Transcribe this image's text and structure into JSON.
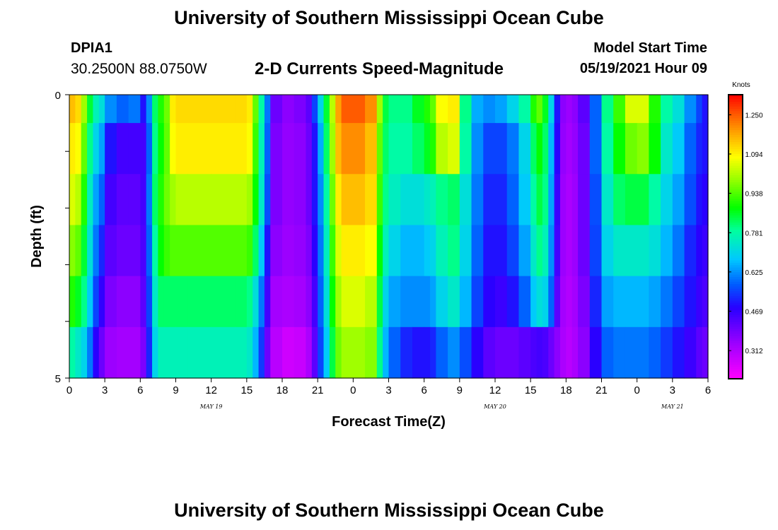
{
  "header": {
    "title": "University of Southern Mississippi Ocean Cube",
    "station_id": "DPIA1",
    "station_coords": "30.2500N  88.0750W",
    "subtitle": "2-D Currents Speed-Magnitude",
    "model_label": "Model Start Time",
    "model_value": "05/19/2021 Hour 09"
  },
  "footer": {
    "title": "University of Southern Mississippi Ocean Cube"
  },
  "chart_data": {
    "type": "heatmap",
    "xlabel": "Forecast Time(Z)",
    "ylabel": "Depth (ft)",
    "x_tick_labels": [
      "0",
      "3",
      "6",
      "9",
      "12",
      "15",
      "18",
      "21",
      "0",
      "3",
      "6",
      "9",
      "12",
      "15",
      "18",
      "21",
      "0",
      "3",
      "6"
    ],
    "date_labels": [
      {
        "text": "MAY 19",
        "hour": 12
      },
      {
        "text": "MAY 20",
        "hour": 36
      },
      {
        "text": "MAY 21",
        "hour": 51
      }
    ],
    "x_hours": [
      0,
      54
    ],
    "y_tick_labels": [
      "0",
      "5"
    ],
    "ylim": [
      0,
      5
    ],
    "depth_rows": 5,
    "colorbar": {
      "unit": "Knots",
      "min": 0.2,
      "max": 1.33,
      "tick_values": [
        1.25,
        1.094,
        0.938,
        0.781,
        0.625,
        0.469,
        0.312
      ],
      "tick_labels": [
        "1.250",
        "1.094",
        "0.938",
        "0.781",
        "0.625",
        "0.469",
        "0.312"
      ]
    },
    "speed_profile_hours": [
      0,
      0.5,
      1,
      1.5,
      2,
      2.5,
      3,
      4,
      5,
      6,
      6.5,
      7,
      7.5,
      8,
      8.5,
      9,
      10,
      12,
      14,
      15,
      15.5,
      16,
      16.5,
      17,
      18,
      19,
      20,
      20.5,
      21,
      21.5,
      22,
      22.5,
      23,
      24,
      25,
      26,
      26.5,
      27,
      28,
      29,
      30,
      30.5,
      31,
      32,
      33,
      34,
      35,
      36,
      37,
      38,
      39,
      39.5,
      40,
      40.5,
      41,
      41.5,
      42,
      42.5,
      43,
      44,
      45,
      46,
      47,
      48,
      49,
      50,
      51,
      52,
      53,
      53.5,
      54
    ],
    "speed_rows": [
      [
        1.15,
        1.12,
        1.0,
        0.85,
        0.76,
        0.72,
        0.62,
        0.58,
        0.6,
        0.5,
        0.62,
        0.82,
        0.9,
        0.96,
        1.1,
        1.12,
        1.12,
        1.12,
        1.12,
        1.1,
        0.95,
        0.78,
        0.6,
        0.4,
        0.36,
        0.38,
        0.42,
        0.55,
        0.7,
        0.85,
        1.02,
        1.18,
        1.25,
        1.25,
        1.2,
        1.0,
        0.84,
        0.8,
        0.8,
        0.86,
        0.9,
        0.95,
        1.08,
        1.1,
        0.8,
        0.65,
        0.62,
        0.64,
        0.7,
        0.78,
        0.9,
        0.95,
        0.86,
        0.7,
        0.5,
        0.36,
        0.34,
        0.36,
        0.42,
        0.58,
        0.8,
        0.92,
        1.05,
        1.05,
        0.9,
        0.78,
        0.72,
        0.62,
        0.55,
        0.5
      ],
      [
        1.1,
        1.08,
        0.95,
        0.8,
        0.7,
        0.64,
        0.5,
        0.45,
        0.45,
        0.45,
        0.58,
        0.8,
        0.88,
        0.95,
        1.08,
        1.1,
        1.1,
        1.1,
        1.1,
        1.08,
        0.92,
        0.76,
        0.58,
        0.38,
        0.35,
        0.36,
        0.4,
        0.5,
        0.65,
        0.82,
        1.0,
        1.15,
        1.2,
        1.2,
        1.15,
        0.95,
        0.82,
        0.78,
        0.78,
        0.82,
        0.86,
        0.9,
        1.02,
        1.05,
        0.78,
        0.62,
        0.55,
        0.55,
        0.6,
        0.7,
        0.82,
        0.88,
        0.82,
        0.66,
        0.48,
        0.35,
        0.33,
        0.35,
        0.4,
        0.58,
        0.78,
        0.88,
        0.96,
        0.98,
        0.88,
        0.74,
        0.68,
        0.58,
        0.52,
        0.5
      ],
      [
        1.05,
        1.02,
        0.9,
        0.75,
        0.64,
        0.58,
        0.45,
        0.42,
        0.42,
        0.45,
        0.6,
        0.82,
        0.9,
        0.96,
        1.0,
        1.02,
        1.02,
        1.02,
        1.02,
        1.0,
        0.88,
        0.74,
        0.56,
        0.38,
        0.35,
        0.36,
        0.4,
        0.5,
        0.62,
        0.78,
        0.96,
        1.1,
        1.15,
        1.15,
        1.12,
        0.92,
        0.8,
        0.75,
        0.72,
        0.72,
        0.74,
        0.76,
        0.8,
        0.82,
        0.72,
        0.6,
        0.52,
        0.52,
        0.58,
        0.68,
        0.78,
        0.84,
        0.8,
        0.64,
        0.46,
        0.34,
        0.32,
        0.34,
        0.4,
        0.56,
        0.74,
        0.82,
        0.84,
        0.84,
        0.78,
        0.7,
        0.64,
        0.56,
        0.5,
        0.48
      ],
      [
        0.98,
        0.95,
        0.85,
        0.72,
        0.6,
        0.52,
        0.42,
        0.4,
        0.4,
        0.44,
        0.58,
        0.78,
        0.88,
        0.92,
        0.94,
        0.94,
        0.94,
        0.94,
        0.94,
        0.92,
        0.82,
        0.68,
        0.5,
        0.36,
        0.34,
        0.35,
        0.38,
        0.48,
        0.6,
        0.75,
        0.92,
        1.05,
        1.1,
        1.1,
        1.08,
        0.88,
        0.76,
        0.7,
        0.66,
        0.66,
        0.68,
        0.7,
        0.76,
        0.8,
        0.7,
        0.58,
        0.5,
        0.5,
        0.55,
        0.64,
        0.74,
        0.8,
        0.76,
        0.62,
        0.45,
        0.34,
        0.32,
        0.34,
        0.4,
        0.55,
        0.7,
        0.74,
        0.74,
        0.74,
        0.72,
        0.66,
        0.6,
        0.52,
        0.48,
        0.46
      ],
      [
        0.9,
        0.86,
        0.8,
        0.68,
        0.55,
        0.47,
        0.38,
        0.36,
        0.36,
        0.42,
        0.55,
        0.74,
        0.82,
        0.82,
        0.82,
        0.82,
        0.82,
        0.82,
        0.82,
        0.8,
        0.72,
        0.6,
        0.45,
        0.33,
        0.32,
        0.33,
        0.36,
        0.45,
        0.58,
        0.72,
        0.88,
        1.0,
        1.05,
        1.05,
        1.02,
        0.84,
        0.7,
        0.64,
        0.62,
        0.62,
        0.62,
        0.64,
        0.7,
        0.74,
        0.66,
        0.55,
        0.48,
        0.46,
        0.5,
        0.58,
        0.68,
        0.72,
        0.7,
        0.58,
        0.42,
        0.33,
        0.31,
        0.33,
        0.38,
        0.52,
        0.64,
        0.66,
        0.66,
        0.66,
        0.64,
        0.6,
        0.55,
        0.5,
        0.46,
        0.44
      ],
      [
        0.78,
        0.74,
        0.7,
        0.6,
        0.48,
        0.4,
        0.34,
        0.33,
        0.33,
        0.38,
        0.52,
        0.7,
        0.76,
        0.76,
        0.76,
        0.76,
        0.76,
        0.76,
        0.76,
        0.74,
        0.66,
        0.54,
        0.4,
        0.3,
        0.27,
        0.28,
        0.32,
        0.42,
        0.55,
        0.68,
        0.84,
        0.96,
        1.0,
        1.0,
        0.98,
        0.8,
        0.66,
        0.58,
        0.52,
        0.5,
        0.5,
        0.52,
        0.58,
        0.62,
        0.56,
        0.48,
        0.42,
        0.4,
        0.4,
        0.42,
        0.44,
        0.45,
        0.44,
        0.4,
        0.36,
        0.32,
        0.3,
        0.32,
        0.36,
        0.48,
        0.58,
        0.6,
        0.6,
        0.6,
        0.58,
        0.54,
        0.5,
        0.46,
        0.42,
        0.4
      ]
    ]
  }
}
